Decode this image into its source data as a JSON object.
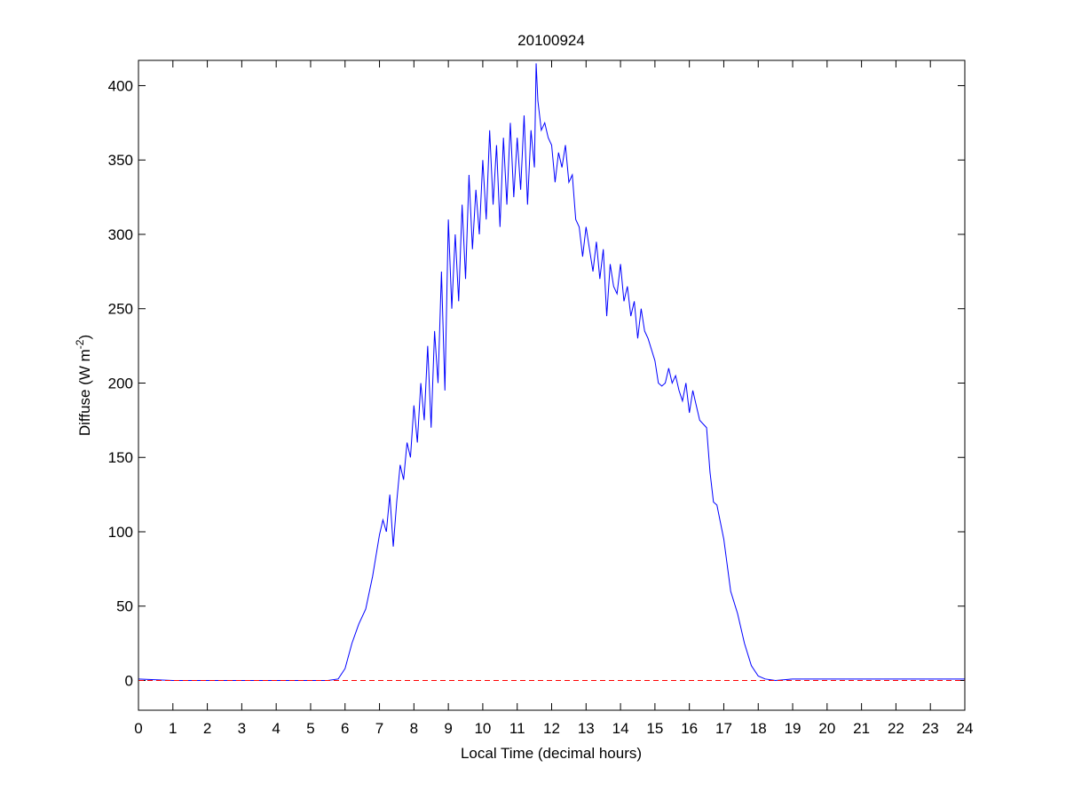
{
  "chart_data": {
    "type": "line",
    "title": "20100924",
    "xlabel": "Local Time (decimal hours)",
    "ylabel": {
      "text": "Diffuse (W m",
      "superscript": "-2",
      "suffix": ")"
    },
    "xlim": [
      0,
      24
    ],
    "ylim": [
      -20,
      417
    ],
    "xticks": [
      0,
      1,
      2,
      3,
      4,
      5,
      6,
      7,
      8,
      9,
      10,
      11,
      12,
      13,
      14,
      15,
      16,
      17,
      18,
      19,
      20,
      21,
      22,
      23,
      24
    ],
    "yticks": [
      0,
      50,
      100,
      150,
      200,
      250,
      300,
      350,
      400
    ],
    "grid": false,
    "reference_line": {
      "y": 0,
      "color": "#ff0000",
      "dashed": true
    },
    "series": [
      {
        "color": "#0000ff",
        "x": [
          0,
          1,
          2,
          3,
          4,
          5,
          5.5,
          5.8,
          6.0,
          6.2,
          6.4,
          6.6,
          6.8,
          7.0,
          7.1,
          7.2,
          7.3,
          7.4,
          7.5,
          7.6,
          7.7,
          7.8,
          7.9,
          8.0,
          8.1,
          8.2,
          8.3,
          8.4,
          8.5,
          8.6,
          8.7,
          8.8,
          8.9,
          9.0,
          9.1,
          9.2,
          9.3,
          9.4,
          9.5,
          9.6,
          9.7,
          9.8,
          9.9,
          10.0,
          10.1,
          10.2,
          10.3,
          10.4,
          10.5,
          10.6,
          10.7,
          10.8,
          10.9,
          11.0,
          11.1,
          11.2,
          11.3,
          11.4,
          11.5,
          11.55,
          11.6,
          11.7,
          11.8,
          11.9,
          12.0,
          12.1,
          12.2,
          12.3,
          12.4,
          12.5,
          12.6,
          12.7,
          12.8,
          12.9,
          13.0,
          13.1,
          13.2,
          13.3,
          13.4,
          13.5,
          13.6,
          13.7,
          13.8,
          13.9,
          14.0,
          14.1,
          14.2,
          14.3,
          14.4,
          14.5,
          14.6,
          14.7,
          14.8,
          15.0,
          15.1,
          15.2,
          15.3,
          15.4,
          15.5,
          15.6,
          15.7,
          15.8,
          15.9,
          16.0,
          16.1,
          16.2,
          16.3,
          16.5,
          16.6,
          16.7,
          16.8,
          17.0,
          17.2,
          17.4,
          17.6,
          17.8,
          18.0,
          18.2,
          18.5,
          19,
          20,
          24
        ],
        "values": [
          1,
          0,
          0,
          0,
          0,
          0,
          0,
          1,
          8,
          25,
          38,
          48,
          70,
          98,
          108,
          100,
          125,
          90,
          120,
          145,
          135,
          160,
          150,
          185,
          160,
          200,
          175,
          225,
          170,
          235,
          200,
          275,
          195,
          310,
          250,
          300,
          255,
          320,
          270,
          340,
          290,
          330,
          300,
          350,
          310,
          370,
          320,
          360,
          305,
          365,
          320,
          375,
          325,
          365,
          330,
          380,
          320,
          370,
          345,
          415,
          390,
          370,
          375,
          365,
          360,
          335,
          355,
          345,
          360,
          335,
          340,
          310,
          305,
          285,
          305,
          290,
          275,
          295,
          270,
          290,
          245,
          280,
          265,
          260,
          280,
          255,
          265,
          245,
          255,
          230,
          250,
          235,
          230,
          215,
          200,
          198,
          200,
          210,
          200,
          205,
          195,
          188,
          200,
          180,
          195,
          185,
          175,
          170,
          140,
          120,
          118,
          95,
          60,
          45,
          25,
          10,
          3,
          1,
          0,
          1,
          1,
          1
        ]
      }
    ]
  }
}
